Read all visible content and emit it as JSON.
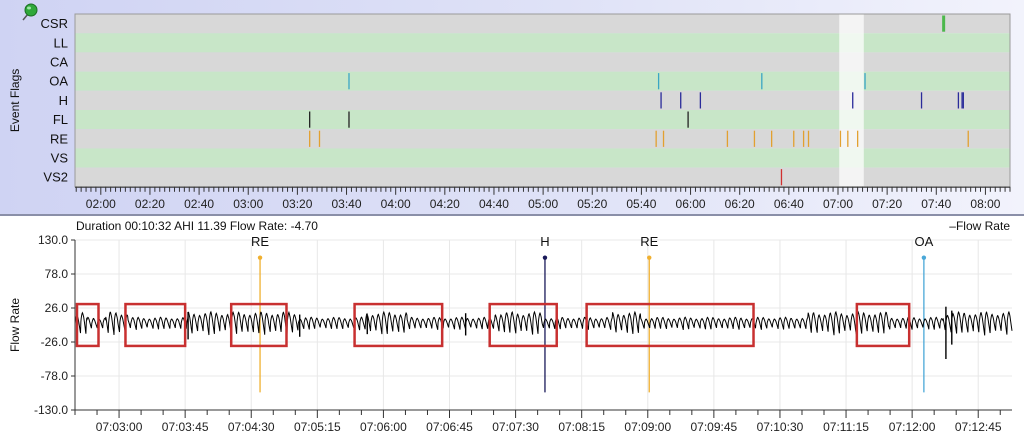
{
  "top_panel": {
    "axis_title": "Event Flags",
    "rows": [
      "CSR",
      "LL",
      "CA",
      "OA",
      "H",
      "FL",
      "RE",
      "VS",
      "VS2"
    ],
    "time_ticks": [
      "02:00",
      "02:20",
      "02:40",
      "03:00",
      "03:20",
      "03:40",
      "04:00",
      "04:20",
      "04:40",
      "05:00",
      "05:20",
      "05:40",
      "06:00",
      "06:20",
      "06:40",
      "07:00",
      "07:20",
      "07:40",
      "08:00"
    ],
    "time_range_minutes": [
      109.5,
      490
    ],
    "highlight_window_minutes": [
      420.5,
      430.5
    ],
    "row_colors": {
      "even": "#d8d8d8",
      "odd": "#c8e6c8"
    },
    "events": [
      {
        "row": "CSR",
        "t": 463,
        "color": "#4cb84c"
      },
      {
        "row": "OA",
        "t": 221,
        "color": "#3aa6c4"
      },
      {
        "row": "OA",
        "t": 347,
        "color": "#3aa6c4"
      },
      {
        "row": "OA",
        "t": 389,
        "color": "#3aa6c4"
      },
      {
        "row": "OA",
        "t": 431,
        "color": "#3aa6c4"
      },
      {
        "row": "H",
        "t": 348,
        "color": "#2a2a9a"
      },
      {
        "row": "H",
        "t": 356,
        "color": "#2a2a9a"
      },
      {
        "row": "H",
        "t": 364,
        "color": "#2a2a9a"
      },
      {
        "row": "H",
        "t": 426,
        "color": "#2a2a9a"
      },
      {
        "row": "H",
        "t": 454,
        "color": "#2a2a9a"
      },
      {
        "row": "H",
        "t": 469,
        "color": "#2a2a9a"
      },
      {
        "row": "H",
        "t": 470.5,
        "color": "#2a2a9a"
      },
      {
        "row": "H",
        "t": 471,
        "color": "#2a2a9a"
      },
      {
        "row": "FL",
        "t": 205,
        "color": "#222222"
      },
      {
        "row": "FL",
        "t": 221,
        "color": "#222222"
      },
      {
        "row": "FL",
        "t": 359,
        "color": "#222222"
      },
      {
        "row": "RE",
        "t": 205,
        "color": "#e2a030"
      },
      {
        "row": "RE",
        "t": 209,
        "color": "#e2a030"
      },
      {
        "row": "RE",
        "t": 346,
        "color": "#e2a030"
      },
      {
        "row": "RE",
        "t": 349,
        "color": "#e2a030"
      },
      {
        "row": "RE",
        "t": 375,
        "color": "#e2a030"
      },
      {
        "row": "RE",
        "t": 386,
        "color": "#e2a030"
      },
      {
        "row": "RE",
        "t": 393,
        "color": "#e2a030"
      },
      {
        "row": "RE",
        "t": 402,
        "color": "#e2a030"
      },
      {
        "row": "RE",
        "t": 406,
        "color": "#e2a030"
      },
      {
        "row": "RE",
        "t": 408,
        "color": "#e2a030"
      },
      {
        "row": "RE",
        "t": 421,
        "color": "#e2a030"
      },
      {
        "row": "RE",
        "t": 424,
        "color": "#e2a030"
      },
      {
        "row": "RE",
        "t": 428,
        "color": "#e2a030"
      },
      {
        "row": "RE",
        "t": 473,
        "color": "#e2a030"
      },
      {
        "row": "VS2",
        "t": 397,
        "color": "#d03030"
      }
    ]
  },
  "info": {
    "summary": "Duration 00:10:32 AHI 11.39 Flow Rate: -4.70",
    "legend": "Flow Rate"
  },
  "chart_data": {
    "type": "line",
    "title": "",
    "xlabel": "",
    "ylabel": "Flow Rate",
    "ylim": [
      -130,
      130
    ],
    "y_ticks": [
      "130.0",
      "78.0",
      "26.0",
      "-26.0",
      "-78.0",
      "-130.0"
    ],
    "x_range_seconds": [
      25350,
      25988
    ],
    "x_ticks": [
      "07:03:00",
      "07:03:45",
      "07:04:30",
      "07:05:15",
      "07:06:00",
      "07:06:45",
      "07:07:30",
      "07:08:15",
      "07:09:00",
      "07:09:45",
      "07:10:30",
      "07:11:15",
      "07:12:00",
      "07:12:45"
    ],
    "series": [
      {
        "name": "Flow Rate",
        "color": "#000000",
        "breath_period_s": 3.8,
        "base_amplitude": 18
      }
    ],
    "reduced_segments_s": [
      [
        25358,
        25371
      ],
      [
        25386,
        25427
      ],
      [
        25502,
        25548
      ],
      [
        25576,
        25636
      ],
      [
        25668,
        25716
      ],
      [
        25735,
        25849
      ],
      [
        25904,
        25941
      ]
    ],
    "event_markers": [
      {
        "label": "RE",
        "t": 25476,
        "color": "#f0b030"
      },
      {
        "label": "H",
        "t": 25670,
        "color": "#1a1a5a"
      },
      {
        "label": "RE",
        "t": 25741,
        "color": "#f0b030"
      },
      {
        "label": "OA",
        "t": 25928,
        "color": "#4aa8d8"
      }
    ],
    "annotation_boxes_s": [
      [
        25350,
        25366
      ],
      [
        25383,
        25425
      ],
      [
        25455,
        25494
      ],
      [
        25539,
        25600
      ],
      [
        25631,
        25678
      ],
      [
        25697,
        25812
      ],
      [
        25881,
        25918
      ]
    ],
    "grid": true
  },
  "colors": {
    "box": "#c83030",
    "grid": "#e8e8e8"
  }
}
